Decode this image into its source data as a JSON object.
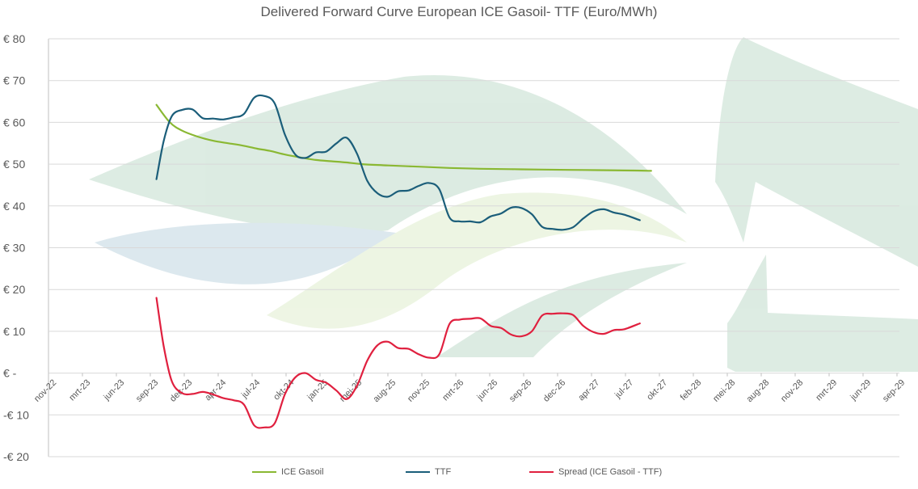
{
  "chart_data": {
    "type": "line",
    "title": "Delivered Forward Curve European ICE Gasoil- TTF (Euro/MWh)",
    "ylim": [
      -20,
      80
    ],
    "yticks": [
      -20,
      -10,
      0,
      10,
      20,
      30,
      40,
      50,
      60,
      70,
      80
    ],
    "ytick_labels": [
      "-€ 20",
      "-€ 10",
      "€ -",
      "€ 10",
      "€ 20",
      "€ 30",
      "€ 40",
      "€ 50",
      "€ 60",
      "€ 70",
      "€ 80"
    ],
    "xtick_labels": [
      "nov-22",
      "mrt-23",
      "jun-23",
      "sep-23",
      "dec-23",
      "apr-24",
      "jul-24",
      "okt-24",
      "jan-25",
      "mei-25",
      "aug-25",
      "nov-25",
      "mrt-26",
      "jun-26",
      "sep-26",
      "dec-26",
      "apr-27",
      "jul-27",
      "okt-27",
      "feb-28",
      "mei-28",
      "aug-28",
      "nov-28",
      "mrt-29",
      "jun-29",
      "sep-29"
    ],
    "x_index_unit": "months since nov-22 (tick every ~3.3 months)",
    "grid": true,
    "legend_position": "bottom",
    "series": [
      {
        "name": "ICE Gasoil",
        "color": "#8ab833",
        "points": [
          [
            10.5,
            64.2
          ],
          [
            11.8,
            60
          ],
          [
            13,
            58
          ],
          [
            14.5,
            56.6
          ],
          [
            16,
            55.6
          ],
          [
            17.5,
            55
          ],
          [
            19,
            54.4
          ],
          [
            20.3,
            53.7
          ],
          [
            21.5,
            53.2
          ],
          [
            23,
            52.3
          ],
          [
            24.5,
            51.6
          ],
          [
            26,
            51
          ],
          [
            27.5,
            50.7
          ],
          [
            29,
            50.4
          ],
          [
            30.5,
            50
          ],
          [
            33,
            49.7
          ],
          [
            36,
            49.4
          ],
          [
            39,
            49.1
          ],
          [
            42,
            48.9
          ],
          [
            45,
            48.8
          ],
          [
            48,
            48.7
          ],
          [
            52,
            48.6
          ],
          [
            56,
            48.5
          ],
          [
            58.6,
            48.4
          ]
        ]
      },
      {
        "name": "TTF",
        "color": "#1b5e7a",
        "points": [
          [
            10.5,
            46.4
          ],
          [
            11.2,
            55.5
          ],
          [
            12,
            61.5
          ],
          [
            13,
            63
          ],
          [
            14,
            63.1
          ],
          [
            15,
            61
          ],
          [
            16,
            60.9
          ],
          [
            17,
            60.7
          ],
          [
            18,
            61.2
          ],
          [
            19,
            62
          ],
          [
            20,
            65.9
          ],
          [
            21,
            66.3
          ],
          [
            22,
            64.5
          ],
          [
            23,
            57
          ],
          [
            24,
            52.3
          ],
          [
            25,
            51.5
          ],
          [
            26,
            52.8
          ],
          [
            27,
            53
          ],
          [
            28,
            55
          ],
          [
            29,
            56.3
          ],
          [
            30,
            52.5
          ],
          [
            31,
            46
          ],
          [
            32,
            43
          ],
          [
            33,
            42.2
          ],
          [
            34,
            43.5
          ],
          [
            35,
            43.7
          ],
          [
            36,
            44.8
          ],
          [
            37,
            45.5
          ],
          [
            38,
            44
          ],
          [
            39,
            37.2
          ],
          [
            40,
            36.3
          ],
          [
            41,
            36.3
          ],
          [
            42,
            36.1
          ],
          [
            43,
            37.5
          ],
          [
            44,
            38.2
          ],
          [
            45,
            39.6
          ],
          [
            46,
            39.5
          ],
          [
            47,
            38
          ],
          [
            48,
            35
          ],
          [
            49,
            34.5
          ],
          [
            50,
            34.3
          ],
          [
            51,
            34.9
          ],
          [
            52,
            37
          ],
          [
            53,
            38.7
          ],
          [
            54,
            39.2
          ],
          [
            55,
            38.4
          ],
          [
            56,
            37.9
          ],
          [
            57.5,
            36.6
          ]
        ]
      },
      {
        "name": "Spread (ICE Gasoil - TTF)",
        "color": "#e0203f",
        "points": [
          [
            10.5,
            18
          ],
          [
            11.2,
            6.5
          ],
          [
            12,
            -2
          ],
          [
            13,
            -4.8
          ],
          [
            14,
            -5
          ],
          [
            15,
            -4.5
          ],
          [
            16,
            -5.1
          ],
          [
            17,
            -6
          ],
          [
            18,
            -6.5
          ],
          [
            19,
            -7.5
          ],
          [
            20,
            -12.5
          ],
          [
            21,
            -13
          ],
          [
            22,
            -12
          ],
          [
            23,
            -5
          ],
          [
            24,
            -1
          ],
          [
            25,
            0
          ],
          [
            26,
            -1.6
          ],
          [
            27,
            -2.3
          ],
          [
            28,
            -4.2
          ],
          [
            29,
            -6.2
          ],
          [
            30,
            -3
          ],
          [
            31,
            3
          ],
          [
            32,
            6.7
          ],
          [
            33,
            7.5
          ],
          [
            34,
            6
          ],
          [
            35,
            5.8
          ],
          [
            36,
            4.5
          ],
          [
            37,
            3.7
          ],
          [
            38,
            4.5
          ],
          [
            39,
            11.8
          ],
          [
            40,
            12.8
          ],
          [
            41,
            13
          ],
          [
            42,
            13.1
          ],
          [
            43,
            11.3
          ],
          [
            44,
            10.8
          ],
          [
            45,
            9.2
          ],
          [
            46,
            8.8
          ],
          [
            47,
            10
          ],
          [
            48,
            13.8
          ],
          [
            49,
            14.2
          ],
          [
            50,
            14.3
          ],
          [
            51,
            13.9
          ],
          [
            52,
            11.3
          ],
          [
            53,
            9.8
          ],
          [
            54,
            9.4
          ],
          [
            55,
            10.3
          ],
          [
            56,
            10.5
          ],
          [
            57.5,
            11.9
          ]
        ]
      }
    ]
  },
  "legend": {
    "items": [
      {
        "label": "ICE Gasoil",
        "color": "#8ab833"
      },
      {
        "label": "TTF",
        "color": "#1b5e7a"
      },
      {
        "label": "Spread (ICE Gasoil - TTF)",
        "color": "#e0203f"
      }
    ]
  }
}
